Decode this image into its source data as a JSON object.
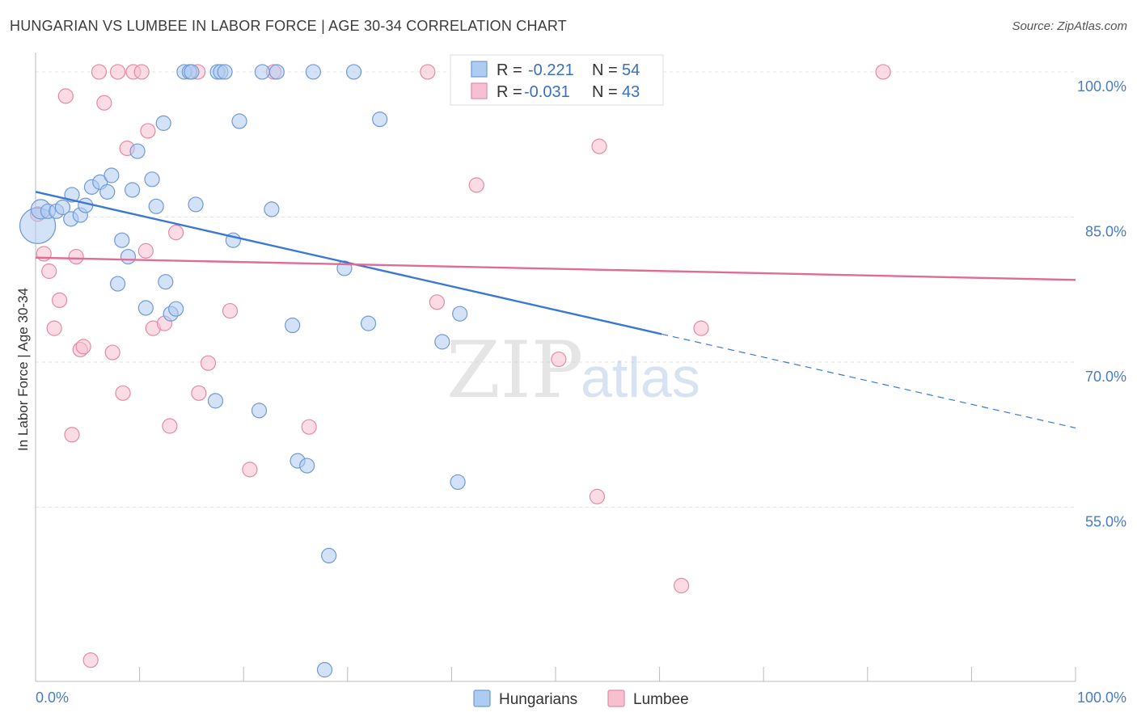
{
  "title": "HUNGARIAN VS LUMBEE IN LABOR FORCE | AGE 30-34 CORRELATION CHART",
  "source": "Source: ZipAtlas.com",
  "watermark": {
    "zip": "ZIP",
    "atlas": "atlas"
  },
  "legend": {
    "r_label": "R =",
    "n_label": "N =",
    "rows": [
      {
        "r": "-0.221",
        "n": "54",
        "fill": "#aecbf0",
        "stroke": "#6f9ad6"
      },
      {
        "r": "-0.031",
        "n": "43",
        "fill": "#f7c0d0",
        "stroke": "#e38aa6"
      }
    ]
  },
  "bottom_legend": [
    {
      "label": "Hungarians",
      "fill": "#aecbf0",
      "stroke": "#6f9ad6"
    },
    {
      "label": "Lumbee",
      "fill": "#f7c0d0",
      "stroke": "#e38aa6"
    }
  ],
  "chart_data": {
    "type": "scatter",
    "title": "HUNGARIAN VS LUMBEE IN LABOR FORCE | AGE 30-34 CORRELATION CHART",
    "xlabel": "",
    "ylabel": "In Labor Force | Age 30-34",
    "xlim": [
      0,
      100
    ],
    "ylim": [
      37,
      102
    ],
    "x_tick_labels": [
      "0.0%",
      "100.0%"
    ],
    "y_ticks": [
      55,
      70,
      85,
      100
    ],
    "y_tick_labels": [
      "55.0%",
      "70.0%",
      "85.0%",
      "100.0%"
    ],
    "grid": true,
    "legend_position": "top-center",
    "series": [
      {
        "name": "Hungarians",
        "color": "#6f9ad6",
        "fill": "#aecbf0",
        "points": [
          [
            0.2,
            84.1,
            22
          ],
          [
            0.5,
            85.8,
            12
          ],
          [
            1.2,
            85.6,
            9
          ],
          [
            2.0,
            85.6,
            9
          ],
          [
            2.6,
            86.0,
            9
          ],
          [
            3.4,
            84.8,
            9
          ],
          [
            3.5,
            87.3,
            9
          ],
          [
            4.3,
            85.2,
            9
          ],
          [
            4.8,
            86.2,
            9
          ],
          [
            5.4,
            88.1,
            9
          ],
          [
            6.2,
            88.6,
            9
          ],
          [
            6.9,
            87.6,
            9
          ],
          [
            7.3,
            89.3,
            9
          ],
          [
            7.9,
            78.1,
            9
          ],
          [
            8.3,
            82.6,
            9
          ],
          [
            8.9,
            80.9,
            9
          ],
          [
            9.3,
            87.8,
            9
          ],
          [
            9.8,
            91.8,
            9
          ],
          [
            10.6,
            75.6,
            9
          ],
          [
            11.2,
            88.9,
            9
          ],
          [
            11.6,
            86.1,
            9
          ],
          [
            12.3,
            94.7,
            9
          ],
          [
            12.5,
            78.3,
            9
          ],
          [
            13.0,
            75.0,
            9
          ],
          [
            13.5,
            75.5,
            9
          ],
          [
            14.3,
            100.0,
            9
          ],
          [
            14.8,
            100.0,
            9
          ],
          [
            15.0,
            100.0,
            9
          ],
          [
            15.4,
            86.3,
            9
          ],
          [
            17.5,
            100.0,
            9
          ],
          [
            17.8,
            100.0,
            9
          ],
          [
            18.2,
            100.0,
            9
          ],
          [
            17.3,
            66.0,
            9
          ],
          [
            19.0,
            82.6,
            9
          ],
          [
            19.6,
            94.9,
            9
          ],
          [
            21.5,
            65.0,
            9
          ],
          [
            21.8,
            100.0,
            9
          ],
          [
            22.7,
            85.8,
            9
          ],
          [
            23.2,
            100.0,
            9
          ],
          [
            24.7,
            73.8,
            9
          ],
          [
            25.2,
            59.8,
            9
          ],
          [
            26.1,
            59.3,
            9
          ],
          [
            26.7,
            100.0,
            9
          ],
          [
            27.8,
            38.2,
            9
          ],
          [
            28.2,
            50.0,
            9
          ],
          [
            29.7,
            79.7,
            9
          ],
          [
            30.6,
            100.0,
            9
          ],
          [
            32.0,
            74.0,
            9
          ],
          [
            33.1,
            95.1,
            9
          ],
          [
            39.1,
            72.1,
            9
          ],
          [
            40.8,
            75.0,
            9
          ],
          [
            40.6,
            57.6,
            9
          ]
        ]
      },
      {
        "name": "Lumbee",
        "color": "#e38aa6",
        "fill": "#f7c0d0",
        "points": [
          [
            0.2,
            85.3,
            9
          ],
          [
            0.8,
            81.2,
            9
          ],
          [
            1.3,
            79.4,
            9
          ],
          [
            1.8,
            73.5,
            9
          ],
          [
            2.3,
            76.4,
            9
          ],
          [
            2.9,
            97.5,
            9
          ],
          [
            3.5,
            62.5,
            9
          ],
          [
            3.9,
            80.9,
            9
          ],
          [
            4.3,
            71.3,
            9
          ],
          [
            4.6,
            71.6,
            9
          ],
          [
            5.3,
            39.2,
            9
          ],
          [
            6.1,
            100.0,
            9
          ],
          [
            6.6,
            96.8,
            9
          ],
          [
            7.4,
            71.0,
            9
          ],
          [
            7.9,
            100.0,
            9
          ],
          [
            8.4,
            66.8,
            9
          ],
          [
            8.8,
            92.1,
            9
          ],
          [
            9.4,
            100.0,
            9
          ],
          [
            10.2,
            100.0,
            9
          ],
          [
            10.6,
            81.5,
            9
          ],
          [
            10.8,
            93.9,
            9
          ],
          [
            11.3,
            73.5,
            9
          ],
          [
            12.4,
            74.0,
            9
          ],
          [
            12.9,
            63.4,
            9
          ],
          [
            13.5,
            83.4,
            9
          ],
          [
            15.6,
            100.0,
            9
          ],
          [
            15.7,
            66.8,
            9
          ],
          [
            16.6,
            69.9,
            9
          ],
          [
            18.7,
            75.3,
            9
          ],
          [
            20.6,
            58.9,
            9
          ],
          [
            22.9,
            100.0,
            9
          ],
          [
            26.3,
            63.3,
            9
          ],
          [
            37.7,
            100.0,
            9
          ],
          [
            38.6,
            76.2,
            9
          ],
          [
            42.4,
            88.3,
            9
          ],
          [
            50.3,
            70.3,
            9
          ],
          [
            54.0,
            56.1,
            9
          ],
          [
            54.2,
            92.3,
            9
          ],
          [
            62.1,
            46.9,
            9
          ],
          [
            64.0,
            73.5,
            9
          ],
          [
            81.5,
            100.0,
            9
          ]
        ]
      }
    ],
    "trendlines": [
      {
        "series": "Hungarians",
        "color": "#3a78d4",
        "x0": 0,
        "y0": 87.6,
        "x1": 60.2,
        "y1": 72.9,
        "dashed_to": [
          100,
          63.2
        ]
      },
      {
        "series": "Lumbee",
        "color": "#e06b97",
        "x0": 0,
        "y0": 80.8,
        "x1": 100,
        "y1": 78.5
      }
    ]
  }
}
